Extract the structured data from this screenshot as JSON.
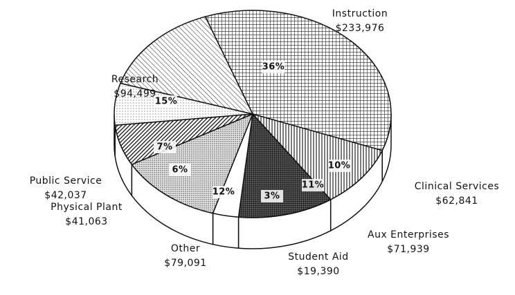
{
  "chart_data": {
    "type": "pie",
    "categories": [
      "Instruction",
      "Clinical Services",
      "Aux Enterprises",
      "Student Aid",
      "Other",
      "Physical Plant",
      "Public Service",
      "Research"
    ],
    "values": [
      233976,
      62841,
      71939,
      19390,
      79091,
      41063,
      42037,
      94499
    ],
    "value_labels": [
      "$233,976",
      "$62,841",
      "$71,939",
      "$19,390",
      "$79,091",
      "$41,063",
      "$42,037",
      "$94,499"
    ],
    "percent_labels": [
      "36%",
      "10%",
      "11%",
      "3%",
      "12%",
      "6%",
      "7%",
      "15%"
    ]
  }
}
